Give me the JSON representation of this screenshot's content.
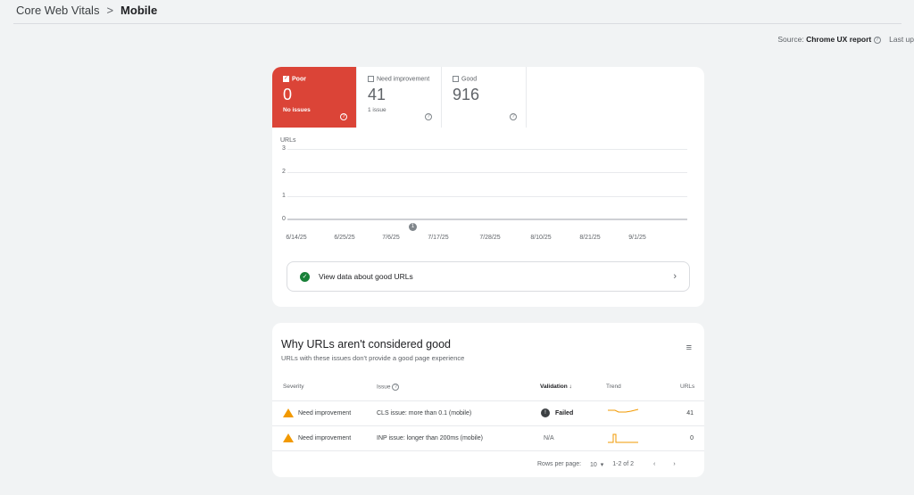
{
  "breadcrumb": {
    "parent": "Core Web Vitals",
    "separator": ">",
    "current": "Mobile"
  },
  "source": {
    "label": "Source:",
    "value": "Chrome UX report",
    "last_updated": "Last up"
  },
  "summary": {
    "tiles": [
      {
        "label": "Poor",
        "value": "0",
        "sub": "No issues",
        "checked": true,
        "color": "#db4437"
      },
      {
        "label": "Need improvement",
        "value": "41",
        "sub": "1 issue",
        "checked": false
      },
      {
        "label": "Good",
        "value": "916",
        "sub": "",
        "checked": false
      }
    ]
  },
  "chart_data": {
    "type": "line",
    "ylabel": "URLs",
    "ylim": [
      0,
      3
    ],
    "yticks": [
      "3",
      "2",
      "1",
      "0"
    ],
    "xticks": [
      "6/14/25",
      "6/25/25",
      "7/6/25",
      "7/17/25",
      "7/28/25",
      "8/10/25",
      "8/21/25",
      "9/1/25"
    ],
    "series": [
      {
        "values": [
          0,
          0,
          0,
          0,
          0,
          0,
          0,
          0
        ],
        "color": "#db4437"
      }
    ],
    "annotation": {
      "label": "1",
      "x": "7/6/25"
    },
    "grid": true
  },
  "good_urls_button": "View data about good URLs",
  "issues": {
    "title": "Why URLs aren't considered good",
    "subtitle": "URLs with these issues don't provide a good page experience",
    "columns": {
      "severity": "Severity",
      "issue": "Issue",
      "validation": "Validation",
      "trend": "Trend",
      "urls": "URLs"
    },
    "rows": [
      {
        "severity": "Need improvement",
        "issue": "CLS issue: more than 0.1 (mobile)",
        "validation": "Failed",
        "urls": "41"
      },
      {
        "severity": "Need improvement",
        "issue": "INP issue: longer than 200ms (mobile)",
        "validation": "N/A",
        "urls": "0"
      }
    ],
    "pagination": {
      "rows_label": "Rows per page:",
      "rows_value": "10",
      "range": "1-2 of 2"
    }
  },
  "colors": {
    "trend": "#f29900",
    "warning": "#f29900",
    "good": "#188038"
  }
}
